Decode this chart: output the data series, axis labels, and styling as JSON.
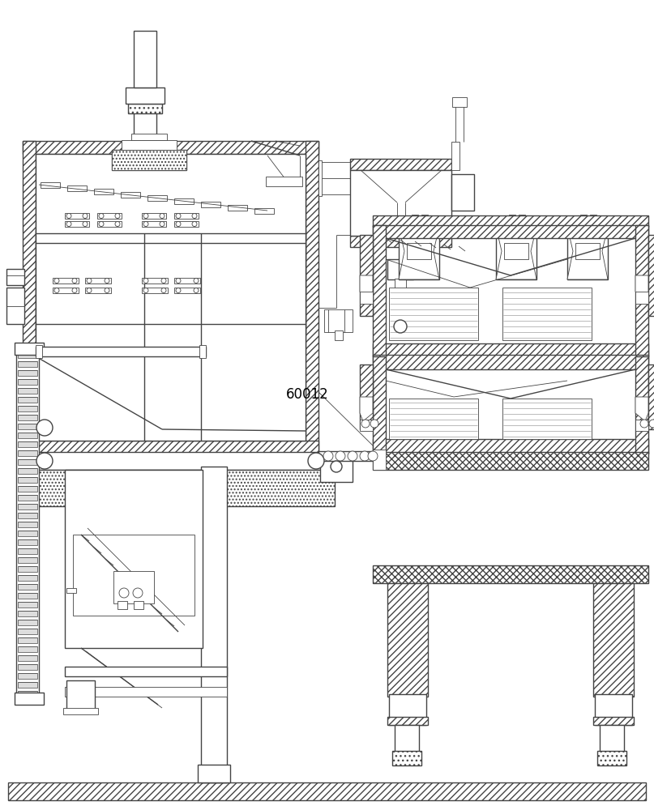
{
  "bg_color": "#ffffff",
  "lc": "#444444",
  "label_60012": "60012",
  "fig_width": 8.07,
  "fig_height": 10.0
}
